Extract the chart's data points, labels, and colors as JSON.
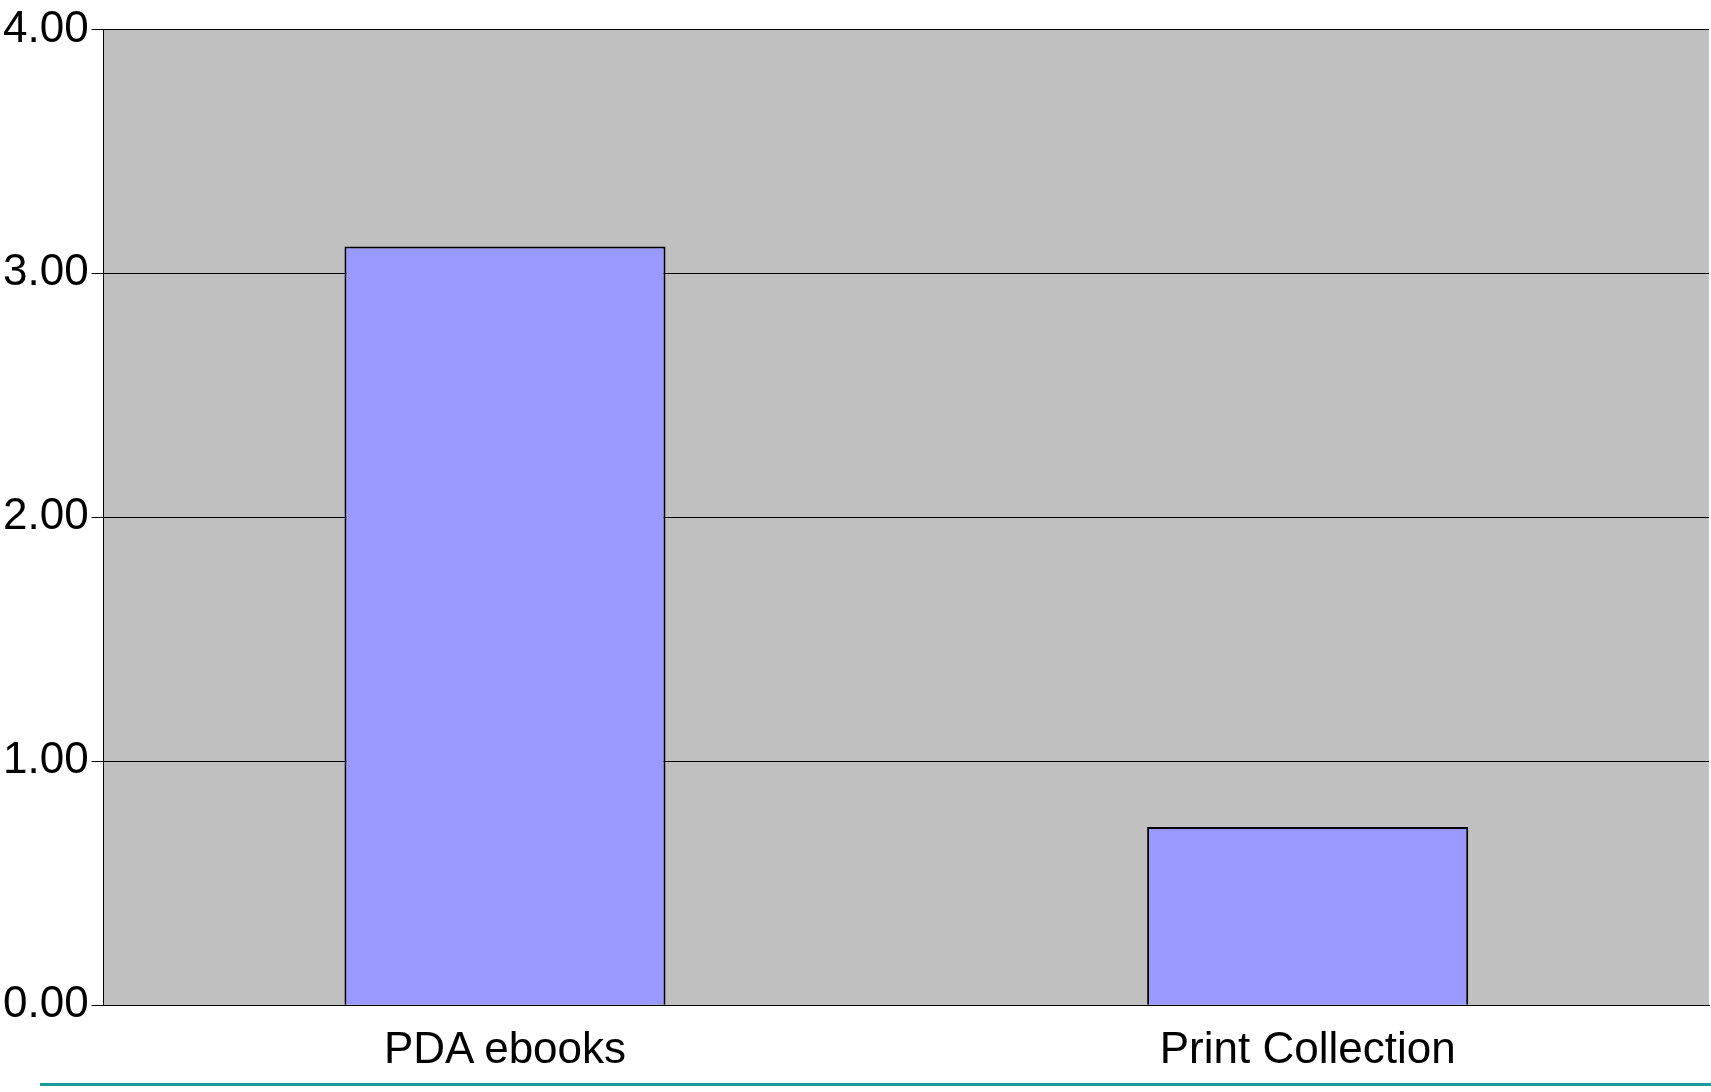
{
  "chart_data": {
    "type": "bar",
    "categories": [
      "PDA ebooks",
      "Print Collection"
    ],
    "values": [
      3.11,
      0.73
    ],
    "color": "#9999ff",
    "ylim": [
      0,
      4
    ],
    "yticks": [
      {
        "value": 0,
        "label": "0.00"
      },
      {
        "value": 1,
        "label": "1.00"
      },
      {
        "value": 2,
        "label": "2.00"
      },
      {
        "value": 3,
        "label": "3.00"
      },
      {
        "value": 4,
        "label": "4.00"
      }
    ],
    "grid": "y"
  }
}
